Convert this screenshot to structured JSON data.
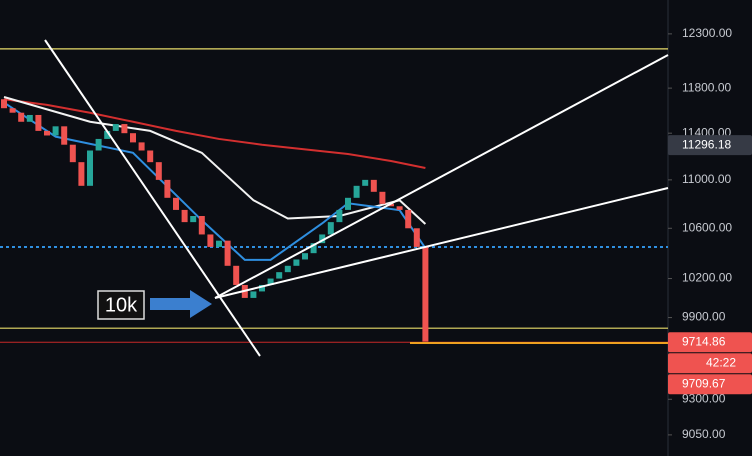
{
  "chart_data": {
    "type": "candlestick",
    "log_scale": true,
    "ylim": [
      8905,
      12623
    ],
    "yticks": [
      {
        "value": 12300,
        "label": "12300.00"
      },
      {
        "value": 11800,
        "label": "11800.00"
      },
      {
        "value": 11400,
        "label": "11400.00"
      },
      {
        "value": 11000,
        "label": "11000.00"
      },
      {
        "value": 10600,
        "label": "10600.00"
      },
      {
        "value": 10200,
        "label": "10200.00"
      },
      {
        "value": 9900,
        "label": "9900.00"
      },
      {
        "value": 9300,
        "label": "9300.00"
      },
      {
        "value": 9050,
        "label": "9050.00"
      }
    ],
    "up_color": "#26a69a",
    "down_color": "#ef5350",
    "open": [
      11700,
      11620,
      11580,
      11500,
      11560,
      11420,
      11380,
      11460,
      11300,
      11150,
      10950,
      11250,
      11350,
      11420,
      11480,
      11400,
      11320,
      11250,
      11150,
      11000,
      10850,
      10750,
      10650,
      10700,
      10550,
      10450,
      10500,
      10300,
      10150,
      10050,
      10100,
      10150,
      10200,
      10250,
      10300,
      10350,
      10400,
      10480,
      10550,
      10650,
      10750,
      10850,
      10950,
      11000,
      10900,
      10800,
      10780,
      10750,
      10600,
      10450
    ],
    "close": [
      11620,
      11580,
      11500,
      11560,
      11420,
      11380,
      11460,
      11300,
      11150,
      10950,
      11250,
      11350,
      11420,
      11480,
      11400,
      11320,
      11250,
      11150,
      11000,
      10850,
      10750,
      10650,
      10700,
      10550,
      10450,
      10500,
      10300,
      10150,
      10050,
      10100,
      10150,
      10200,
      10250,
      10300,
      10350,
      10400,
      10480,
      10550,
      10650,
      10750,
      10850,
      10950,
      11000,
      10900,
      10800,
      10780,
      10750,
      10600,
      10450,
      9720
    ],
    "series": [
      {
        "color": "#d32f2f",
        "x": [
          0,
          5,
          10,
          15,
          20,
          25,
          30,
          35,
          40,
          45,
          49
        ],
        "values": [
          11700,
          11650,
          11580,
          11500,
          11420,
          11350,
          11300,
          11260,
          11220,
          11160,
          11100
        ]
      },
      {
        "color": "#f2f2f2",
        "x": [
          0,
          10,
          17,
          23,
          29,
          33,
          39,
          46,
          49
        ],
        "values": [
          11720,
          11500,
          11420,
          11230,
          10830,
          10680,
          10700,
          10830,
          10635
        ]
      },
      {
        "color": "#2f8fe0",
        "x": [
          0,
          6,
          15,
          23,
          28,
          31,
          37,
          40,
          46,
          49
        ],
        "values": [
          11670,
          11370,
          11230,
          10665,
          10347,
          10347,
          10640,
          10805,
          10748,
          10440
        ]
      }
    ],
    "levels": [
      {
        "value": 12160,
        "color": "#e8dc6a",
        "dashed": false
      },
      {
        "value": 9820,
        "color": "#e8dc6a",
        "dashed": false
      },
      {
        "value": 10449,
        "color": "#2f8fe0",
        "dashed": true
      }
    ],
    "price_labels": [
      {
        "value": 11296.18,
        "label": "11296.18",
        "color": "#363a45"
      },
      {
        "value": 9714.86,
        "label": "9714.86",
        "color": "#ef5350"
      },
      {
        "label": "42:22",
        "color": "#ef5350"
      },
      {
        "value": 9709.67,
        "label": "9709.67",
        "color": "#ef5350"
      }
    ],
    "annotation": "10k"
  }
}
